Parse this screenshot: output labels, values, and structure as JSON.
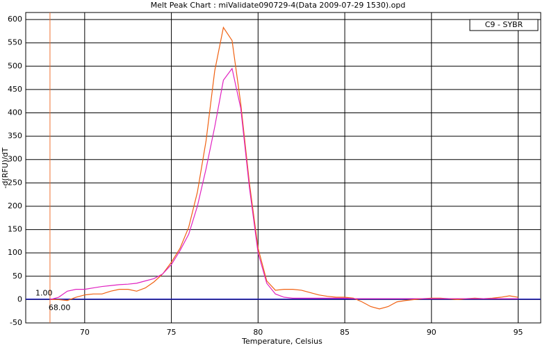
{
  "chart_data": {
    "type": "line",
    "title": "Melt Peak Chart : miValidate090729-4(Data 2009-07-29 1530).opd",
    "x_label": "Temperature, Celsius",
    "y_label": "-d(RFU)/dT",
    "legend_label": "C9 - SYBR",
    "xlim": [
      66.6,
      96.3
    ],
    "xticks": [
      70,
      75,
      80,
      85,
      90,
      95
    ],
    "ylim": [
      -50,
      615
    ],
    "yticks": [
      -50,
      0,
      50,
      100,
      150,
      200,
      250,
      300,
      350,
      400,
      450,
      500,
      550,
      600
    ],
    "grid": true,
    "cursor": {
      "x": {
        "value": 68,
        "label": "68.00"
      },
      "y": {
        "value": 1,
        "label": "1.00"
      },
      "x_color": "#f07030",
      "y_color": "#2020c0"
    },
    "x": [
      68,
      68.5,
      69,
      69.5,
      70,
      70.5,
      71,
      71.5,
      72,
      72.5,
      73,
      73.5,
      74,
      74.5,
      75,
      75.5,
      76,
      76.5,
      77,
      77.5,
      78,
      78.5,
      79,
      79.5,
      80,
      80.5,
      81,
      81.5,
      82,
      82.5,
      83,
      83.5,
      84,
      84.5,
      85,
      85.5,
      86,
      86.5,
      87,
      87.5,
      88,
      88.5,
      89,
      89.5,
      90,
      90.5,
      91,
      91.5,
      92,
      92.5,
      93,
      93.5,
      94,
      94.5,
      95
    ],
    "series": [
      {
        "color": "#f06010",
        "values": [
          0,
          0,
          -2,
          5,
          10,
          12,
          12,
          18,
          22,
          22,
          18,
          25,
          38,
          55,
          80,
          110,
          155,
          230,
          340,
          490,
          583,
          555,
          420,
          250,
          110,
          40,
          20,
          22,
          22,
          20,
          15,
          10,
          7,
          5,
          5,
          3,
          -5,
          -15,
          -20,
          -15,
          -5,
          -2,
          0,
          2,
          3,
          3,
          2,
          0,
          2,
          3,
          2,
          3,
          5,
          8,
          5
        ]
      },
      {
        "color": "#e020c0",
        "values": [
          0,
          5,
          18,
          22,
          22,
          25,
          28,
          30,
          32,
          33,
          35,
          40,
          45,
          55,
          75,
          105,
          140,
          200,
          280,
          370,
          470,
          495,
          410,
          240,
          100,
          35,
          12,
          5,
          3,
          3,
          3,
          3,
          3,
          3,
          3,
          2,
          2,
          2,
          2,
          2,
          2,
          2,
          2,
          2,
          2,
          2,
          2,
          2,
          2,
          2,
          2,
          2,
          2,
          2,
          2
        ]
      }
    ]
  }
}
